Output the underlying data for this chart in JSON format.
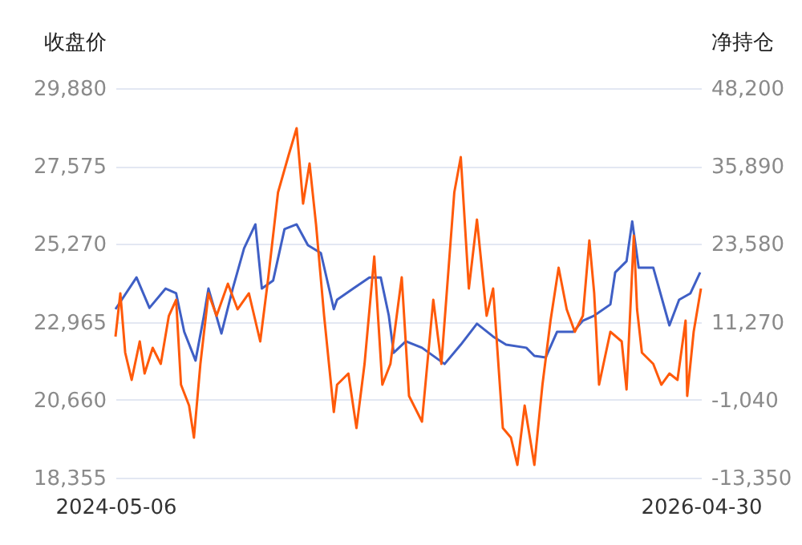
{
  "chart_data": {
    "type": "line",
    "ylabel": "收盘价",
    "y2label": "净持仓",
    "xlim": [
      "2024-05-06",
      "2026-04-30"
    ],
    "xticks": [
      "2024-05-06",
      "2026-04-30"
    ],
    "ylim": [
      18355,
      29880
    ],
    "yticks": [
      {
        "value": 18355,
        "label": "18,355"
      },
      {
        "value": 20660,
        "label": "20,660"
      },
      {
        "value": 22965,
        "label": "22,965"
      },
      {
        "value": 25270,
        "label": "25,270"
      },
      {
        "value": 27575,
        "label": "27,575"
      },
      {
        "value": 29880,
        "label": "29,880"
      }
    ],
    "y2lim": [
      -13350,
      48200
    ],
    "y2ticks": [
      {
        "value": -13350,
        "label": "-13,350"
      },
      {
        "value": -1040,
        "label": "-1,040"
      },
      {
        "value": 11270,
        "label": "11,270"
      },
      {
        "value": 23580,
        "label": "23,580"
      },
      {
        "value": 35890,
        "label": "35,890"
      },
      {
        "value": 48200,
        "label": "48,200"
      }
    ],
    "grid": "y",
    "marker": "none",
    "line_style": "solid",
    "series": [
      {
        "color": "#3f5fc5",
        "axis": "y",
        "x": [
          "2024-05-06",
          "2024-06-01",
          "2024-06-17",
          "2024-07-07",
          "2024-07-20",
          "2024-07-30",
          "2024-08-13",
          "2024-08-23",
          "2024-08-29",
          "2024-09-14",
          "2024-09-28",
          "2024-10-12",
          "2024-10-26",
          "2024-11-03",
          "2024-11-17",
          "2024-12-01",
          "2024-12-16",
          "2024-12-30",
          "2025-01-15",
          "2025-01-31",
          "2025-02-04",
          "2025-02-24",
          "2025-03-16",
          "2025-03-30",
          "2025-04-09",
          "2025-04-15",
          "2025-04-30",
          "2025-05-20",
          "2025-06-17",
          "2025-07-07",
          "2025-07-27",
          "2025-08-16",
          "2025-09-01",
          "2025-09-26",
          "2025-10-06",
          "2025-10-20",
          "2025-11-03",
          "2025-11-23",
          "2025-12-05",
          "2025-12-19",
          "2026-01-08",
          "2026-01-14",
          "2026-01-28",
          "2026-02-04",
          "2026-02-12",
          "2026-03-02",
          "2026-03-22",
          "2026-04-03",
          "2026-04-17",
          "2026-04-29"
        ],
        "values": [
          23340,
          24280,
          23380,
          23950,
          23810,
          22670,
          21820,
          23100,
          23950,
          22620,
          23950,
          25140,
          25850,
          23950,
          24190,
          25710,
          25850,
          25230,
          25000,
          23340,
          23620,
          23950,
          24280,
          24280,
          23150,
          22050,
          22390,
          22200,
          21720,
          22290,
          22910,
          22530,
          22290,
          22200,
          21960,
          21910,
          22670,
          22670,
          23000,
          23150,
          23480,
          24430,
          24760,
          25940,
          24570,
          24570,
          22860,
          23620,
          23810,
          24430
        ]
      },
      {
        "color": "#ff5a0a",
        "axis": "y2",
        "x": [
          "2024-05-06",
          "2024-05-12",
          "2024-05-18",
          "2024-05-26",
          "2024-06-05",
          "2024-06-11",
          "2024-06-21",
          "2024-07-01",
          "2024-07-11",
          "2024-07-20",
          "2024-07-26",
          "2024-08-05",
          "2024-08-11",
          "2024-08-19",
          "2024-08-29",
          "2024-09-08",
          "2024-09-22",
          "2024-10-04",
          "2024-10-18",
          "2024-11-01",
          "2024-11-11",
          "2024-11-23",
          "2024-12-06",
          "2024-12-16",
          "2024-12-24",
          "2025-01-01",
          "2025-01-09",
          "2025-01-19",
          "2025-01-31",
          "2025-02-04",
          "2025-02-18",
          "2025-02-28",
          "2025-03-10",
          "2025-03-22",
          "2025-04-01",
          "2025-04-11",
          "2025-04-25",
          "2025-05-04",
          "2025-05-20",
          "2025-06-03",
          "2025-06-13",
          "2025-06-29",
          "2025-07-07",
          "2025-07-17",
          "2025-07-27",
          "2025-08-08",
          "2025-08-16",
          "2025-08-28",
          "2025-09-07",
          "2025-09-15",
          "2025-09-24",
          "2025-10-06",
          "2025-10-16",
          "2025-10-26",
          "2025-11-05",
          "2025-11-15",
          "2025-11-25",
          "2025-12-05",
          "2025-12-13",
          "2025-12-19",
          "2025-12-25",
          "2026-01-08",
          "2026-01-22",
          "2026-01-28",
          "2026-02-06",
          "2026-02-10",
          "2026-02-16",
          "2026-03-02",
          "2026-03-12",
          "2026-03-22",
          "2026-04-01",
          "2026-04-11",
          "2026-04-13",
          "2026-04-21",
          "2026-04-30"
        ],
        "values": [
          8940,
          15780,
          6410,
          2100,
          8180,
          3110,
          7170,
          4630,
          12230,
          14760,
          1340,
          -1950,
          -7020,
          4630,
          15780,
          12230,
          17300,
          13250,
          15780,
          8180,
          18310,
          31740,
          37560,
          41870,
          29960,
          36300,
          26670,
          12230,
          -2970,
          1340,
          3110,
          -5500,
          4630,
          21600,
          1340,
          4630,
          18310,
          -430,
          -4490,
          14760,
          4630,
          31740,
          37310,
          16540,
          27430,
          12230,
          16540,
          -5500,
          -7020,
          -11330,
          -1950,
          -11330,
          1340,
          11470,
          19830,
          13250,
          9700,
          12230,
          24140,
          15780,
          1340,
          9700,
          8180,
          580,
          24900,
          13250,
          6410,
          4630,
          1340,
          3110,
          2100,
          11470,
          -430,
          9700,
          16540
        ]
      }
    ]
  }
}
